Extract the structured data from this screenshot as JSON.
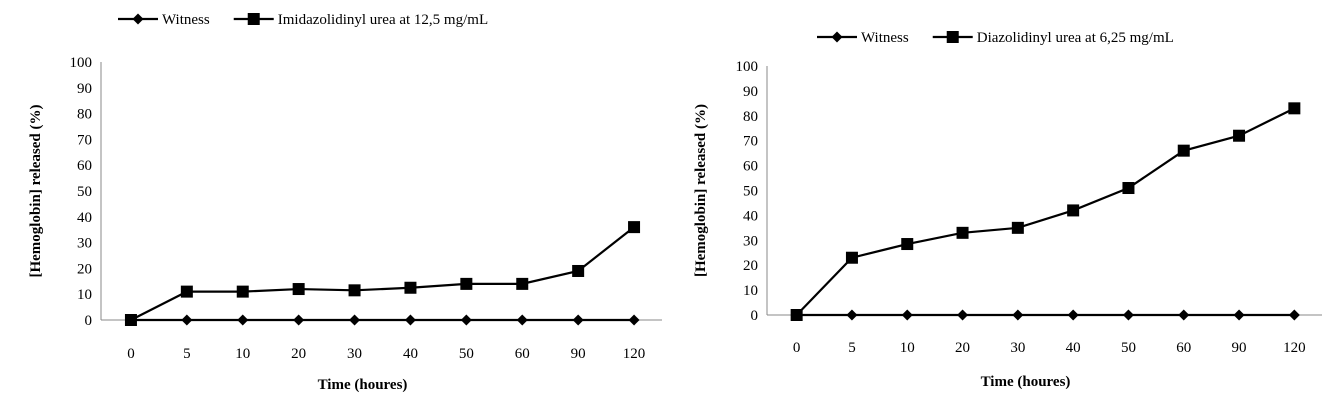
{
  "chart_data": [
    {
      "type": "line",
      "title": "",
      "xlabel": "Time (houres)",
      "ylabel": "[Hemoglobin] released  (%)",
      "categories": [
        "0",
        "5",
        "10",
        "20",
        "30",
        "40",
        "50",
        "60",
        "90",
        "120"
      ],
      "ylim": [
        0,
        100
      ],
      "yticks": [
        "0",
        "10",
        "20",
        "30",
        "40",
        "50",
        "60",
        "70",
        "80",
        "90",
        "100"
      ],
      "grid": false,
      "legend_position": "top",
      "series": [
        {
          "name": "Witness",
          "marker": "diamond",
          "color": "#000000",
          "values": [
            0,
            0,
            0,
            0,
            0,
            0,
            0,
            0,
            0,
            0
          ]
        },
        {
          "name": "Imidazolidinyl urea at 12,5 mg/mL",
          "marker": "square",
          "color": "#000000",
          "values": [
            0,
            11,
            11,
            12,
            11.5,
            12.5,
            14,
            14,
            19,
            36
          ]
        }
      ]
    },
    {
      "type": "line",
      "title": "",
      "xlabel": "Time (houres)",
      "ylabel": "[Hemoglobin] released  (%)",
      "categories": [
        "0",
        "5",
        "10",
        "20",
        "30",
        "40",
        "50",
        "60",
        "90",
        "120"
      ],
      "ylim": [
        0,
        100
      ],
      "yticks": [
        "0",
        "10",
        "20",
        "30",
        "40",
        "50",
        "60",
        "70",
        "80",
        "90",
        "100"
      ],
      "grid": false,
      "legend_position": "top",
      "series": [
        {
          "name": "Witness",
          "marker": "diamond",
          "color": "#000000",
          "values": [
            0,
            0,
            0,
            0,
            0,
            0,
            0,
            0,
            0,
            0
          ]
        },
        {
          "name": "Diazolidinyl urea at 6,25 mg/mL",
          "marker": "square",
          "color": "#000000",
          "values": [
            0,
            23,
            28.5,
            33,
            35,
            42,
            51,
            66,
            72,
            83
          ]
        }
      ]
    }
  ]
}
